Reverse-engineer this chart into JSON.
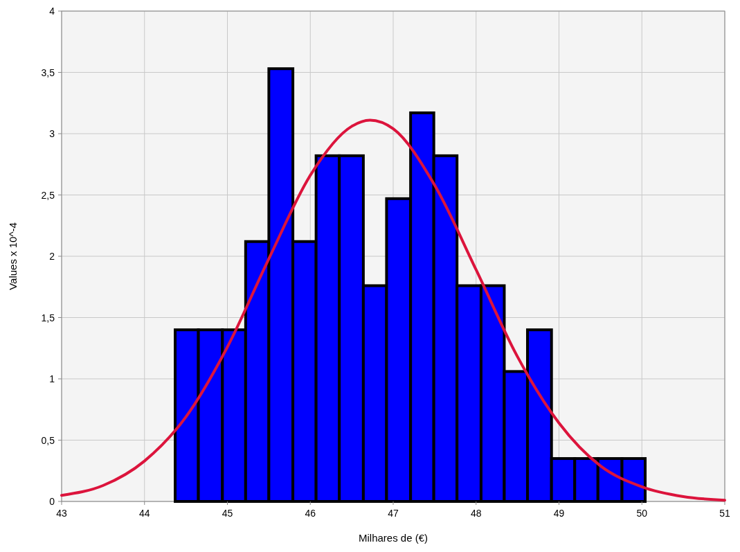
{
  "chart_data": {
    "type": "histogram",
    "xlabel": "Milhares de (€)",
    "ylabel": "Values x 10^-4",
    "xlim": [
      43,
      51
    ],
    "xticks": [
      43,
      44,
      45,
      46,
      47,
      48,
      49,
      50,
      51
    ],
    "ylim": [
      0,
      4
    ],
    "yticks": [
      0,
      {
        "value": 0.5,
        "label": "0,5"
      },
      1,
      {
        "value": 1.5,
        "label": "1,5"
      },
      2,
      {
        "value": 2.5,
        "label": "2,5"
      },
      3,
      {
        "value": 3.5,
        "label": "3,5"
      },
      4
    ],
    "grid": true,
    "series": [
      {
        "color": "#0000ff",
        "bins": [
          44.37,
          44.65,
          44.94,
          45.22,
          45.5,
          45.79,
          46.07,
          46.35,
          46.64,
          46.92,
          47.21,
          47.49,
          47.77,
          48.06,
          48.34,
          48.62,
          48.91,
          49.19,
          49.47,
          49.76,
          50.04
        ],
        "values": [
          1.4,
          1.4,
          1.4,
          2.12,
          3.53,
          2.12,
          2.82,
          2.82,
          1.76,
          2.47,
          3.17,
          2.82,
          1.76,
          1.76,
          1.06,
          1.4,
          0.35,
          0.35,
          0.35,
          0.35
        ]
      },
      {
        "type": "line",
        "color": "#dc143c",
        "marker": "none",
        "x": [
          43,
          43.5,
          44,
          44.5,
          45,
          45.5,
          46,
          46.5,
          46.72,
          47,
          47.5,
          48,
          48.5,
          49,
          49.5,
          50,
          50.5,
          51
        ],
        "values": [
          0.05,
          0.13,
          0.33,
          0.69,
          1.26,
          1.98,
          2.66,
          3.06,
          3.11,
          3.04,
          2.58,
          1.89,
          1.18,
          0.64,
          0.29,
          0.12,
          0.04,
          0.01
        ]
      }
    ]
  }
}
